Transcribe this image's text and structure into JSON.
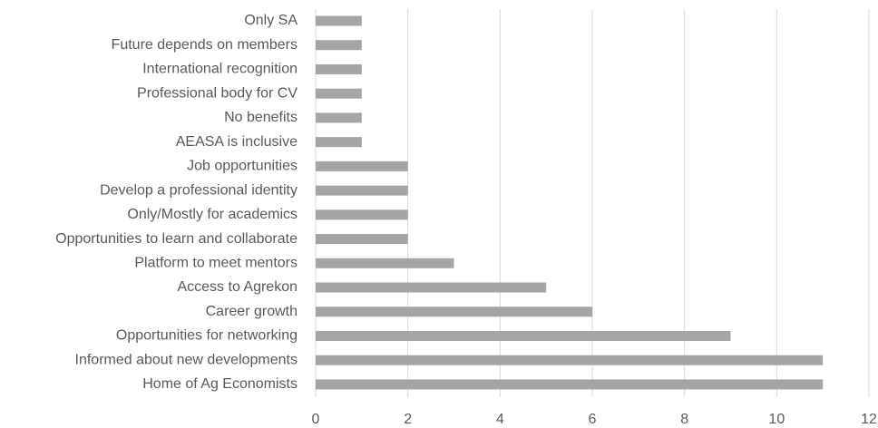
{
  "chart_data": {
    "type": "barh",
    "categories": [
      "Only SA",
      "Future depends on members",
      "International recognition",
      "Professional body for CV",
      "No benefits",
      "AEASA is inclusive",
      "Job opportunities",
      "Develop a professional identity",
      "Only/Mostly for academics",
      "Opportunities to learn and collaborate",
      "Platform to meet mentors",
      "Access to Agrekon",
      "Career growth",
      "Opportunities for networking",
      "Informed about new developments",
      "Home of Ag Economists"
    ],
    "values": [
      1,
      1,
      1,
      1,
      1,
      1,
      2,
      2,
      2,
      2,
      3,
      5,
      6,
      9,
      11,
      11
    ],
    "color": "#a5a5a5",
    "xlim": [
      0,
      12
    ],
    "xticks": [
      0,
      2,
      4,
      6,
      8,
      10,
      12
    ],
    "grid": true
  }
}
